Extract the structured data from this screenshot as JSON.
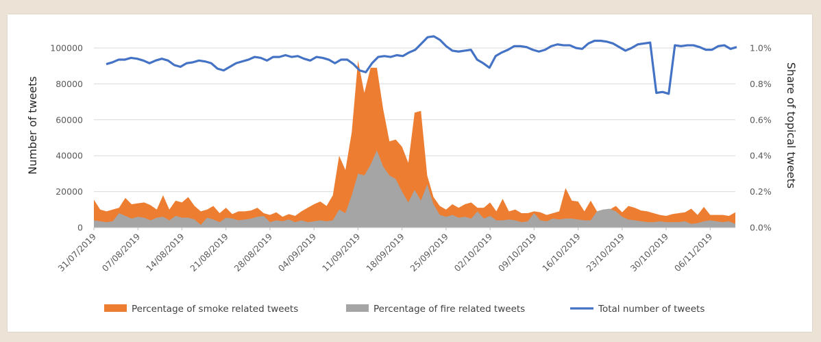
{
  "chart_data": {
    "type": "area",
    "title": "",
    "x_tick_labels": [
      "31/07/2019",
      "07/08/2019",
      "14/08/2019",
      "21/08/2019",
      "28/08/2019",
      "04/09/2019",
      "11/09/2019",
      "18/09/2019",
      "25/09/2019",
      "02/10/2019",
      "09/10/2019",
      "16/10/2019",
      "23/10/2019",
      "30/10/2019",
      "06/11/2019"
    ],
    "x_start": "2019-07-31",
    "x_step_days": 1,
    "ylabel_left": "Number of tweets",
    "ylabel_right": "Share of topical tweets",
    "y_left_ticks": [
      "0",
      "20000",
      "40000",
      "60000",
      "80000",
      "100000"
    ],
    "y_left_range": [
      0,
      110000
    ],
    "y_right_ticks": [
      "0.0%",
      "0.2%",
      "0.4%",
      "0.6%",
      "0.8%",
      "1.0%"
    ],
    "y_right_range": [
      0,
      1.1
    ],
    "gridlines": "horizontal",
    "legend_position": "bottom",
    "series": [
      {
        "name": "Percentage of smoke related tweets",
        "kind": "area",
        "axis": "left",
        "color": "#ed7d31",
        "values": [
          15500,
          10000,
          9000,
          10000,
          11000,
          16500,
          13000,
          13500,
          14000,
          12500,
          10000,
          18000,
          10000,
          15000,
          14000,
          17000,
          12000,
          9000,
          10000,
          12000,
          8000,
          11000,
          7500,
          9000,
          9000,
          9500,
          11000,
          8000,
          7000,
          8500,
          6000,
          7500,
          6500,
          9000,
          11000,
          13000,
          14500,
          12000,
          18000,
          40000,
          32000,
          53000,
          93000,
          75000,
          89000,
          89000,
          66000,
          48000,
          49000,
          45000,
          36000,
          64000,
          65000,
          29000,
          17000,
          12000,
          10000,
          13000,
          11000,
          13000,
          14000,
          11000,
          11000,
          14000,
          9000,
          16000,
          9000,
          10000,
          8000,
          8000,
          9000,
          8500,
          7000,
          8000,
          9000,
          22000,
          15000,
          14500,
          9000,
          15000,
          9000,
          10000,
          10000,
          12000,
          8500,
          12000,
          11000,
          9500,
          9000,
          8000,
          7000,
          6500,
          7500,
          8000,
          8500,
          10500,
          7000,
          11500,
          7000,
          7000,
          7000,
          6500,
          8500
        ]
      },
      {
        "name": "Percentage of fire related tweets",
        "kind": "area",
        "axis": "left",
        "color": "#a5a5a5",
        "values": [
          4000,
          3500,
          3000,
          3500,
          8000,
          6500,
          5000,
          6000,
          5500,
          4000,
          5500,
          6000,
          4000,
          6500,
          5500,
          5500,
          4500,
          1500,
          5500,
          4500,
          3000,
          5500,
          5000,
          4000,
          4500,
          5000,
          6000,
          6500,
          3000,
          4000,
          3500,
          4500,
          3000,
          4000,
          3000,
          3500,
          4000,
          3500,
          4000,
          10000,
          8000,
          18000,
          30000,
          29000,
          35000,
          43000,
          34000,
          29000,
          27000,
          20000,
          14000,
          21000,
          15000,
          24000,
          13000,
          7000,
          6000,
          7000,
          5500,
          6000,
          5000,
          9000,
          5000,
          6500,
          4000,
          4000,
          4500,
          4000,
          3000,
          3500,
          8000,
          4000,
          3500,
          5000,
          4500,
          5000,
          5000,
          4500,
          4000,
          4000,
          9000,
          10000,
          10500,
          9000,
          6000,
          4500,
          4000,
          3500,
          3000,
          3000,
          3500,
          3000,
          3000,
          3000,
          3500,
          2000,
          2500,
          3500,
          4000,
          3500,
          3000,
          3500,
          2000
        ]
      },
      {
        "name": "Total number of tweets",
        "kind": "line",
        "axis": "left",
        "color": "#4472c4",
        "values": [
          91000,
          92000,
          93500,
          93500,
          94500,
          94000,
          93000,
          91500,
          93000,
          94000,
          93000,
          90500,
          89500,
          91500,
          92000,
          93000,
          92500,
          91500,
          88500,
          87500,
          89500,
          91500,
          92500,
          93500,
          95000,
          94500,
          93000,
          95000,
          95000,
          96000,
          95000,
          95500,
          94000,
          93000,
          95000,
          94500,
          93500,
          91500,
          93500,
          93500,
          91000,
          87500,
          86500,
          91500,
          95000,
          95500,
          95000,
          96000,
          95500,
          97500,
          99000,
          102500,
          106000,
          106500,
          104500,
          101000,
          98500,
          98000,
          98500,
          99000,
          93500,
          91500,
          89000,
          95500,
          97500,
          99000,
          101000,
          101000,
          100500,
          99000,
          98000,
          99000,
          101000,
          102000,
          101500,
          101500,
          100000,
          99500,
          102500,
          104000,
          104000,
          103500,
          102500,
          100500,
          98500,
          100000,
          102000,
          102500,
          103000,
          75000,
          75500,
          74500,
          101500,
          101000,
          101500,
          101500,
          100500,
          99000,
          99000,
          101000,
          101500,
          99500,
          100500
        ]
      }
    ]
  }
}
